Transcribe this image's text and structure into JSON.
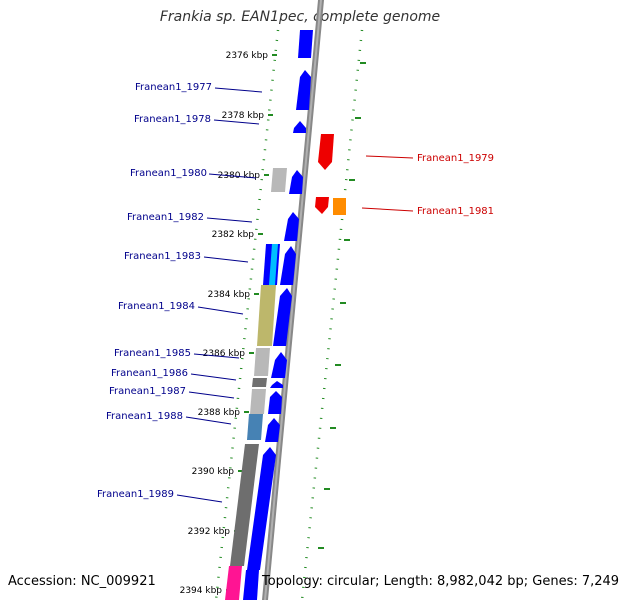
{
  "title": "Frankia sp. EAN1pec, complete genome",
  "footer": {
    "accession": "Accession: NC_009921",
    "topology": "Topology: circular; Length: 8,982,042 bp; Genes: 7,249"
  },
  "colors": {
    "forward_cds": "#0000ff",
    "reverse_cds": "#ff0000",
    "left_label": "#00008b",
    "right_label": "#cc0000",
    "tick_green": "#228b22",
    "backbone": "#888888"
  },
  "ruler_labels": [
    "2376 kbp",
    "2378 kbp",
    "2380 kbp",
    "2382 kbp",
    "2384 kbp",
    "2386 kbp",
    "2388 kbp",
    "2390 kbp",
    "2392 kbp",
    "2394 kbp"
  ],
  "genes": [
    {
      "id": "Franean1_1977",
      "side": "left"
    },
    {
      "id": "Franean1_1978",
      "side": "left"
    },
    {
      "id": "Franean1_1979",
      "side": "right"
    },
    {
      "id": "Franean1_1980",
      "side": "left"
    },
    {
      "id": "Franean1_1981",
      "side": "right"
    },
    {
      "id": "Franean1_1982",
      "side": "left"
    },
    {
      "id": "Franean1_1983",
      "side": "left"
    },
    {
      "id": "Franean1_1984",
      "side": "left"
    },
    {
      "id": "Franean1_1985",
      "side": "left"
    },
    {
      "id": "Franean1_1986",
      "side": "left"
    },
    {
      "id": "Franean1_1987",
      "side": "left"
    },
    {
      "id": "Franean1_1988",
      "side": "left"
    },
    {
      "id": "Franean1_1989",
      "side": "left"
    }
  ]
}
